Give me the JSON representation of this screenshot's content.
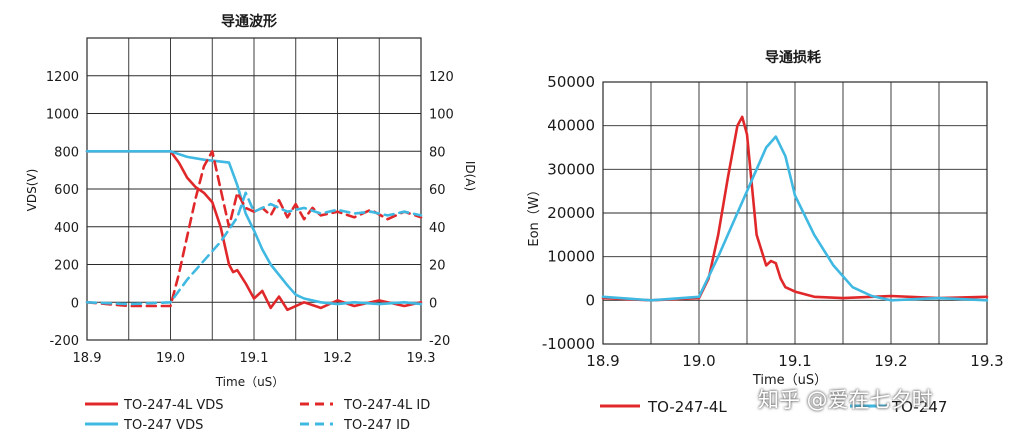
{
  "watermark": "知乎 @爱在七夕时",
  "colors": {
    "red": "#e0282a",
    "cyan": "#3fb8e2",
    "grid": "#2a2a2a"
  },
  "chart_data": [
    {
      "type": "line",
      "title": "导通波形",
      "xlabel": "Time（uS）",
      "ylabel": "VDS(V)",
      "y2label": "ID(A)",
      "xlim": [
        18.9,
        19.3
      ],
      "ylim": [
        -200,
        1400
      ],
      "y2lim": [
        -20,
        140
      ],
      "xticks": [
        "18.9",
        "19.0",
        "19.1",
        "19.2",
        "19.3"
      ],
      "yticks": [
        "-200",
        "0",
        "200",
        "400",
        "600",
        "800",
        "1000",
        "1200"
      ],
      "y2ticks": [
        "-20",
        "0",
        "20",
        "40",
        "60",
        "80",
        "100",
        "120"
      ],
      "legend": "bottom",
      "series": [
        {
          "name": "TO-247-4L VDS",
          "axis": "left",
          "color": "#e0282a",
          "dash": false,
          "x": [
            18.9,
            19.0,
            19.01,
            19.02,
            19.03,
            19.04,
            19.05,
            19.06,
            19.065,
            19.07,
            19.075,
            19.08,
            19.09,
            19.1,
            19.11,
            19.12,
            19.13,
            19.14,
            19.16,
            19.18,
            19.2,
            19.22,
            19.25,
            19.28,
            19.3
          ],
          "y": [
            800,
            800,
            740,
            660,
            610,
            580,
            530,
            400,
            300,
            200,
            160,
            170,
            100,
            20,
            60,
            -30,
            30,
            -40,
            0,
            -30,
            10,
            -20,
            10,
            -20,
            0
          ]
        },
        {
          "name": "TO-247 VDS",
          "axis": "left",
          "color": "#3fb8e2",
          "dash": false,
          "x": [
            18.9,
            19.0,
            19.02,
            19.04,
            19.06,
            19.07,
            19.08,
            19.09,
            19.1,
            19.11,
            19.12,
            19.14,
            19.15,
            19.16,
            19.18,
            19.2,
            19.22,
            19.25,
            19.28,
            19.3
          ],
          "y": [
            800,
            800,
            770,
            755,
            745,
            740,
            620,
            470,
            380,
            280,
            200,
            90,
            40,
            20,
            0,
            -10,
            0,
            -10,
            0,
            -10
          ]
        },
        {
          "name": "TO-247-4L ID",
          "axis": "right",
          "color": "#e0282a",
          "dash": true,
          "x": [
            18.9,
            18.95,
            19.0,
            19.01,
            19.02,
            19.03,
            19.04,
            19.05,
            19.06,
            19.07,
            19.08,
            19.09,
            19.1,
            19.11,
            19.12,
            19.13,
            19.14,
            19.15,
            19.16,
            19.17,
            19.18,
            19.2,
            19.22,
            19.24,
            19.26,
            19.28,
            19.3
          ],
          "y": [
            0,
            -2,
            -2,
            15,
            35,
            55,
            72,
            80,
            60,
            40,
            58,
            50,
            48,
            50,
            46,
            54,
            45,
            52,
            44,
            50,
            46,
            48,
            45,
            49,
            44,
            48,
            45
          ]
        },
        {
          "name": "TO-247 ID",
          "axis": "right",
          "color": "#3fb8e2",
          "dash": true,
          "x": [
            18.9,
            18.95,
            19.0,
            19.02,
            19.04,
            19.06,
            19.08,
            19.09,
            19.1,
            19.12,
            19.14,
            19.16,
            19.18,
            19.2,
            19.22,
            19.24,
            19.26,
            19.28,
            19.3
          ],
          "y": [
            0,
            -1,
            0,
            12,
            22,
            32,
            45,
            58,
            48,
            52,
            48,
            50,
            47,
            49,
            47,
            48,
            46,
            48,
            46
          ]
        }
      ]
    },
    {
      "type": "line",
      "title": "导通损耗",
      "xlabel": "Time（uS）",
      "ylabel": "Eon（W）",
      "xlim": [
        18.9,
        19.3
      ],
      "ylim": [
        -10000,
        50000
      ],
      "xticks": [
        "18.9",
        "19.0",
        "19.1",
        "19.2",
        "19.3"
      ],
      "yticks": [
        "-10000",
        "0",
        "10000",
        "20000",
        "30000",
        "40000",
        "50000"
      ],
      "legend": "bottom",
      "series": [
        {
          "name": "TO-247-4L",
          "color": "#e0282a",
          "dash": false,
          "x": [
            18.9,
            18.95,
            19.0,
            19.01,
            19.02,
            19.03,
            19.04,
            19.045,
            19.05,
            19.06,
            19.07,
            19.075,
            19.08,
            19.085,
            19.09,
            19.1,
            19.12,
            19.15,
            19.2,
            19.25,
            19.3
          ],
          "y": [
            500,
            0,
            500,
            5000,
            15000,
            28000,
            40000,
            42000,
            38000,
            15000,
            8000,
            9000,
            8500,
            5000,
            3000,
            2000,
            800,
            500,
            1000,
            500,
            800
          ]
        },
        {
          "name": "TO-247",
          "color": "#3fb8e2",
          "dash": false,
          "x": [
            18.9,
            18.95,
            19.0,
            19.02,
            19.04,
            19.06,
            19.07,
            19.08,
            19.09,
            19.1,
            19.12,
            19.14,
            19.16,
            19.18,
            19.2,
            19.25,
            19.3
          ],
          "y": [
            800,
            0,
            800,
            10000,
            20000,
            30000,
            35000,
            37500,
            33000,
            24000,
            15000,
            8000,
            3000,
            1000,
            0,
            500,
            0
          ]
        }
      ]
    }
  ]
}
